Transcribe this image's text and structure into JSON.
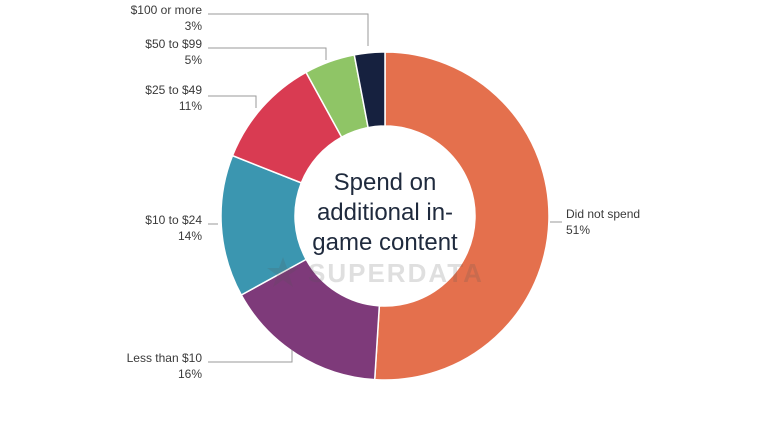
{
  "chart_data": {
    "type": "pie",
    "donut": true,
    "center_title_lines": [
      "Spend on",
      "additional in-",
      "game content"
    ],
    "watermark": "SUPERDATA",
    "slices": [
      {
        "label": "Did not spend",
        "value": 51,
        "value_label": "51%",
        "color": "#e4704d"
      },
      {
        "label": "Less than $10",
        "value": 16,
        "value_label": "16%",
        "color": "#7e3a7a"
      },
      {
        "label": "$10 to $24",
        "value": 14,
        "value_label": "14%",
        "color": "#3b96b0"
      },
      {
        "label": "$25 to $49",
        "value": 11,
        "value_label": "11%",
        "color": "#d93b52"
      },
      {
        "label": "$50 to $99",
        "value": 5,
        "value_label": "5%",
        "color": "#8fc566"
      },
      {
        "label": "$100 or more",
        "value": 3,
        "value_label": "3%",
        "color": "#16213f"
      }
    ],
    "start_angle": "top (12 o'clock)",
    "direction": "clockwise",
    "grid": false,
    "legend": "none (callout labels)"
  }
}
